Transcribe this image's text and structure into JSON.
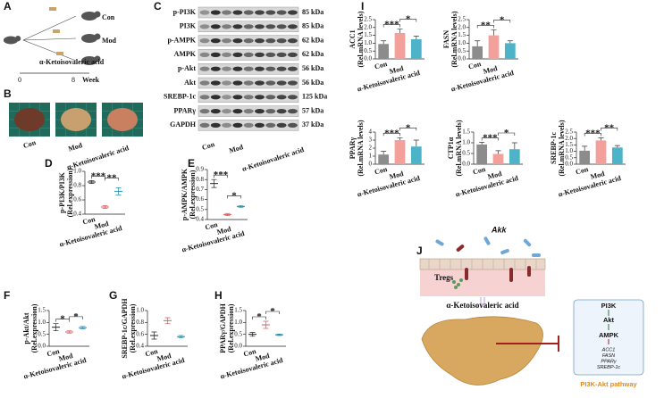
{
  "panel_labels": [
    "A",
    "B",
    "C",
    "D",
    "E",
    "F",
    "G",
    "H",
    "I",
    "J"
  ],
  "panel_a": {
    "groups": [
      "Con",
      "Mod",
      "α-Ketoisovaleric acid"
    ],
    "timeline": [
      "0",
      "8",
      "Week"
    ]
  },
  "panel_b": {
    "groups": [
      "Con",
      "Mod",
      "α-Ketoisovaleric acid"
    ]
  },
  "panel_c": {
    "proteins": [
      "p-PI3K",
      "PI3K",
      "p-AMPK",
      "AMPK",
      "p-Akt",
      "Akt",
      "SREBP-1c",
      "PPARγ",
      "GAPDH"
    ],
    "sizes": [
      "85 kDa",
      "85 kDa",
      "62 kDa",
      "62 kDa",
      "56 kDa",
      "56 kDa",
      "125 kDa",
      "57 kDa",
      "37 kDa"
    ],
    "groups": [
      "Con",
      "Mod",
      "α-Ketoisovaleric acid"
    ]
  },
  "chart_data": [
    {
      "type": "dot",
      "ylabel": "p-PI3K/PI3K",
      "ylabel_unit": "(Rel.expression)",
      "categories": [
        "Con",
        "Mod",
        "α-Ketoisovaleric acid"
      ],
      "values": [
        0.85,
        0.5,
        0.72
      ],
      "errors": [
        0.02,
        0.02,
        0.05
      ],
      "colors": [
        "#222222",
        "#e05a5a",
        "#2a8fb0"
      ],
      "ylim": [
        0.4,
        1.0
      ],
      "yticks": [
        0.4,
        0.6,
        0.8,
        {
          "value": 1,
          "label": "1.0"
        }
      ],
      "significance": [
        "***",
        "**"
      ]
    },
    {
      "type": "dot",
      "ylabel": "p-AMPK/AMPK",
      "ylabel_unit": "(Rel.expression)",
      "categories": [
        "Con",
        "Mod",
        "α-Ketoisovaleric acid"
      ],
      "values": [
        0.76,
        0.45,
        0.53
      ],
      "errors": [
        0.04,
        0.01,
        0.01
      ],
      "colors": [
        "#222222",
        "#e05a5a",
        "#2a8fb0"
      ],
      "ylim": [
        0.4,
        0.9
      ],
      "yticks": [
        0.4,
        0.5,
        0.6,
        0.7,
        0.8,
        0.9
      ],
      "significance": [
        "***",
        "*"
      ]
    },
    {
      "type": "dot",
      "ylabel": "p-Akt/Akt",
      "ylabel_unit": "(Rel.expression)",
      "categories": [
        "Con",
        "Mod",
        "α-Ketoisovaleric acid"
      ],
      "values": [
        0.8,
        0.6,
        0.78
      ],
      "errors": [
        0.15,
        0.05,
        0.05
      ],
      "colors": [
        "#222222",
        "#e05a5a",
        "#2a8fb0"
      ],
      "ylim": [
        0,
        1.5
      ],
      "yticks": [
        {
          "value": 0,
          "label": "0.0"
        },
        0.5,
        {
          "value": 1,
          "label": "1.0"
        },
        1.5
      ],
      "significance": [
        "*",
        "*"
      ]
    },
    {
      "type": "dot",
      "ylabel": "SREBP-1c/GAPDH",
      "ylabel_unit": "(Rel.expression)",
      "categories": [
        "Con",
        "Mod",
        "α-Ketoisovaleric acid"
      ],
      "values": [
        0.58,
        0.83,
        0.56
      ],
      "errors": [
        0.06,
        0.05,
        0.02
      ],
      "colors": [
        "#222222",
        "#e05a5a",
        "#2a8fb0"
      ],
      "ylim": [
        0.4,
        1.0
      ],
      "yticks": [
        0.4,
        0.6,
        0.8,
        {
          "value": 1,
          "label": "1.0"
        }
      ]
    },
    {
      "type": "dot",
      "ylabel": "PPARγ/GAPDH",
      "ylabel_unit": "(Rel.expression)",
      "categories": [
        "Con",
        "Mod",
        "α-Ketoisovaleric acid"
      ],
      "values": [
        0.5,
        0.9,
        0.48
      ],
      "errors": [
        0.08,
        0.15,
        0.03
      ],
      "colors": [
        "#222222",
        "#e05a5a",
        "#2a8fb0"
      ],
      "ylim": [
        0,
        1.5
      ],
      "yticks": [
        {
          "value": 0,
          "label": "0.0"
        },
        0.5,
        {
          "value": 1,
          "label": "1.0"
        },
        1.5
      ],
      "significance": [
        "*",
        "*"
      ]
    },
    {
      "type": "bar",
      "ylabel": "ACC1",
      "ylabel_unit": "(Rel.mRNA levels)",
      "categories": [
        "Con",
        "Mod",
        "α-Ketoisovaleric acid"
      ],
      "values": [
        0.95,
        1.65,
        1.25
      ],
      "errors": [
        0.2,
        0.25,
        0.2
      ],
      "colors": [
        "#8c8c8c",
        "#f4a09a",
        "#4db3c9"
      ],
      "ylim": [
        0,
        2.5
      ],
      "yticks": [
        {
          "value": 0,
          "label": "0.0"
        },
        0.5,
        {
          "value": 1,
          "label": "1.0"
        },
        1.5,
        {
          "value": 2,
          "label": "2.0"
        },
        2.5
      ],
      "significance": [
        "***",
        "*"
      ]
    },
    {
      "type": "bar",
      "ylabel": "FASN",
      "ylabel_unit": "(Rel.mRNA levels)",
      "categories": [
        "Con",
        "Mod",
        "α-Ketoisovaleric acid"
      ],
      "values": [
        0.8,
        1.5,
        1.0
      ],
      "errors": [
        0.35,
        0.35,
        0.15
      ],
      "colors": [
        "#8c8c8c",
        "#f4a09a",
        "#4db3c9"
      ],
      "ylim": [
        0,
        2.5
      ],
      "yticks": [
        {
          "value": 0,
          "label": "0.0"
        },
        0.5,
        {
          "value": 1,
          "label": "1.0"
        },
        1.5,
        {
          "value": 2,
          "label": "2.0"
        },
        2.5
      ],
      "significance": [
        "**",
        "*"
      ]
    },
    {
      "type": "bar",
      "ylabel": "PPARγ",
      "ylabel_unit": "(Rel.mRNA levels)",
      "categories": [
        "Con",
        "Mod",
        "α-Ketoisovaleric acid"
      ],
      "values": [
        1.2,
        3.0,
        2.2
      ],
      "errors": [
        0.4,
        0.3,
        0.8
      ],
      "colors": [
        "#8c8c8c",
        "#f4a09a",
        "#4db3c9"
      ],
      "ylim": [
        0,
        4
      ],
      "yticks": [
        0,
        1,
        2,
        3,
        4
      ],
      "significance": [
        "***",
        "*"
      ]
    },
    {
      "type": "bar",
      "ylabel": "CTP1α",
      "ylabel_unit": "(Rel.mRNA levels)",
      "categories": [
        "Con",
        "Mod",
        "α-Ketoisovaleric acid"
      ],
      "values": [
        0.92,
        0.48,
        0.7
      ],
      "errors": [
        0.1,
        0.15,
        0.3
      ],
      "colors": [
        "#8c8c8c",
        "#f4a09a",
        "#4db3c9"
      ],
      "ylim": [
        0,
        1.5
      ],
      "yticks": [
        {
          "value": 0,
          "label": "0.0"
        },
        0.5,
        {
          "value": 1,
          "label": "1.0"
        },
        1.5
      ],
      "significance": [
        "***",
        "*"
      ]
    },
    {
      "type": "bar",
      "ylabel": "SREBP-1c",
      "ylabel_unit": "(Rel.mRNA levels)",
      "categories": [
        "Con",
        "Mod",
        "α-Ketoisovaleric acid"
      ],
      "values": [
        1.05,
        1.85,
        1.3
      ],
      "errors": [
        0.35,
        0.2,
        0.15
      ],
      "colors": [
        "#8c8c8c",
        "#f4a09a",
        "#4db3c9"
      ],
      "ylim": [
        0,
        2.5
      ],
      "yticks": [
        {
          "value": 0,
          "label": "0.0"
        },
        0.5,
        {
          "value": 1,
          "label": "1.0"
        },
        1.5,
        {
          "value": 2,
          "label": "2.0"
        },
        2.5
      ],
      "significance": [
        "***",
        "**"
      ]
    }
  ],
  "panel_j": {
    "bacteria": "Akk",
    "cells": "Tregs",
    "metabolite": "α-Ketoisovaleric acid",
    "pathway": [
      "PI3K",
      "Akt",
      "AMPK"
    ],
    "targets": [
      "ACC1",
      "FASN",
      "PPARγ",
      "SREBP-1c"
    ],
    "pathway_name": "PI3K-Akt pathway"
  }
}
